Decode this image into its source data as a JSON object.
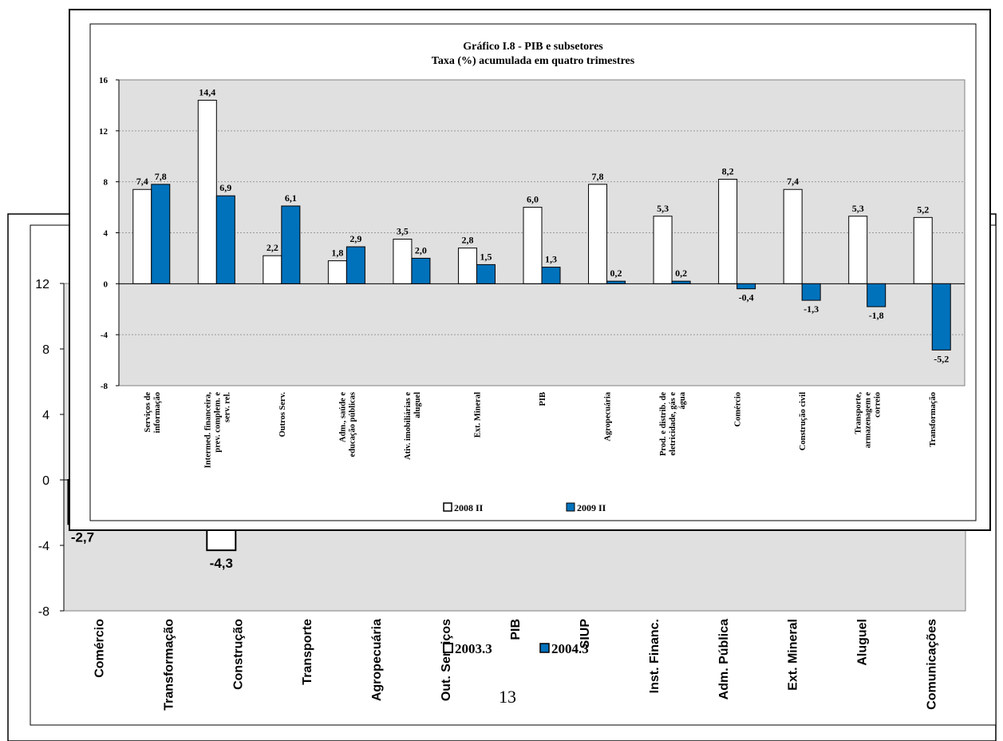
{
  "page_number": "13",
  "chart_data": [
    {
      "type": "bar",
      "title": "",
      "categories": [
        "Comércio",
        "Transformação",
        "Construção",
        "Transporte",
        "Agropecuária",
        "Out. Serviços",
        "PIB",
        "SIUP",
        "Inst. Financ.",
        "Adm. Pública",
        "Ext. Mineral",
        "Aluguel",
        "Comunicações"
      ],
      "series": [
        {
          "name": "2003.3",
          "color": "#ffffff",
          "values": [
            -2.7,
            null,
            -4.3,
            null,
            null,
            null,
            null,
            null,
            null,
            null,
            null,
            null,
            null
          ]
        },
        {
          "name": "2004.3",
          "color": "#0072bc",
          "values": [
            null,
            null,
            null,
            null,
            null,
            null,
            null,
            null,
            null,
            null,
            null,
            null,
            null
          ]
        }
      ],
      "data_labels": {
        "0": "-2,7",
        "2": "-4,3"
      },
      "yticks": [
        "12",
        "8",
        "4",
        "0",
        "-4",
        "-8"
      ],
      "ylim": [
        -8,
        12
      ],
      "grid": true,
      "legend": "bottom"
    },
    {
      "type": "bar",
      "title": "Gráfico I.8 - PIB  e subsetores",
      "subtitle": "Taxa (%) acumulada em quatro trimestres",
      "categories": [
        "Serviços de informação",
        "Intermed. financeira, prev. complem. e serv. rel.",
        "Outros Serv.",
        "Adm., saúde e educação públicas",
        "Ativ. imobiliárias e aluguel",
        "Ext. Mineral",
        "PIB",
        "Agropecuária",
        "Prod. e distrib. de eletricidade, gás e água",
        "Comércio",
        "Construção civil",
        "Transporte, armazenagem e correio",
        "Transformação"
      ],
      "category_lines": [
        [
          "Serviços de",
          "informação"
        ],
        [
          "Intermed. financeira,",
          "prev. complem. e",
          "serv. rel."
        ],
        [
          "Outros Serv."
        ],
        [
          "Adm., saúde e",
          "educação públicas"
        ],
        [
          "Ativ. imobiliárias e",
          "aluguel"
        ],
        [
          "Ext. Mineral"
        ],
        [
          "PIB"
        ],
        [
          "Agropecuária"
        ],
        [
          "Prod. e distrib. de",
          "eletricidade, gás e",
          "água"
        ],
        [
          "Comércio"
        ],
        [
          "Construção civil"
        ],
        [
          "Transporte,",
          "armazenagem e",
          "correio"
        ],
        [
          "Transformação"
        ]
      ],
      "series": [
        {
          "name": "2008 II",
          "color": "#ffffff",
          "values": [
            7.4,
            14.4,
            2.2,
            1.8,
            3.5,
            2.8,
            6.0,
            7.8,
            5.3,
            8.2,
            7.4,
            5.3,
            5.2
          ],
          "labels": [
            "7,4",
            "14,4",
            "2,2",
            "1,8",
            "3,5",
            "2,8",
            "6,0",
            "7,8",
            "5,3",
            "8,2",
            "7,4",
            "5,3",
            "5,2"
          ]
        },
        {
          "name": "2009 II",
          "color": "#0072bc",
          "values": [
            7.8,
            6.9,
            6.1,
            2.9,
            2.0,
            1.5,
            1.3,
            0.2,
            0.2,
            -0.4,
            -1.3,
            -1.8,
            -5.2
          ],
          "labels": [
            "7,8",
            "6,9",
            "6,1",
            "2,9",
            "2,0",
            "1,5",
            "1,3",
            "0,2",
            "0,2",
            "-0,4",
            "-1,3",
            "-1,8",
            "-5,2"
          ]
        }
      ],
      "yticks": [
        "16",
        "12",
        "8",
        "4",
        "0",
        "-4",
        "-8"
      ],
      "ylim": [
        -8,
        16
      ],
      "grid": true,
      "legend": "bottom"
    }
  ]
}
